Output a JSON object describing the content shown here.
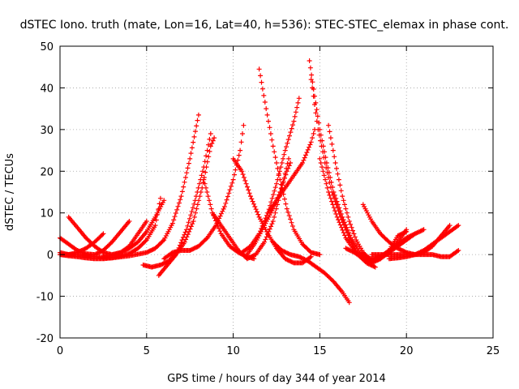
{
  "chart_data": {
    "type": "scatter",
    "title": "dSTEC Iono. truth (mate, Lon=16, Lat=40, h=536): STEC-STEC_elemax in phase cont.",
    "xlabel": "GPS time / hours of day 344 of year 2014",
    "ylabel": "dSTEC  / TECUs",
    "xlim": [
      0,
      25
    ],
    "ylim": [
      -20,
      50
    ],
    "xticks": [
      0,
      5,
      10,
      15,
      20,
      25
    ],
    "yticks": [
      -20,
      -10,
      0,
      10,
      20,
      30,
      40,
      50
    ],
    "xtick_labels": [
      "0",
      "5",
      "10",
      "15",
      "20",
      "25"
    ],
    "ytick_labels": [
      "-20",
      "-10",
      "0",
      "10",
      "20",
      "30",
      "40",
      "50"
    ],
    "grid": true,
    "marker": "+",
    "color": "#ff0000",
    "series": [
      {
        "points": [
          [
            0.0,
            4.0
          ],
          [
            0.5,
            2.5
          ],
          [
            1.0,
            1.0
          ],
          [
            1.5,
            0.2
          ],
          [
            2.0,
            0.0
          ],
          [
            2.5,
            1.0
          ],
          [
            3.0,
            3.0
          ],
          [
            3.5,
            5.5
          ],
          [
            4.0,
            8.0
          ]
        ]
      },
      {
        "points": [
          [
            0.0,
            0.5
          ],
          [
            0.5,
            0.0
          ],
          [
            1.0,
            0.5
          ],
          [
            1.5,
            1.5
          ],
          [
            2.0,
            3.0
          ],
          [
            2.5,
            5.0
          ]
        ]
      },
      {
        "points": [
          [
            0.5,
            9.0
          ],
          [
            1.0,
            6.5
          ],
          [
            1.5,
            4.0
          ],
          [
            2.0,
            2.0
          ],
          [
            2.5,
            0.5
          ],
          [
            3.0,
            0.0
          ],
          [
            3.5,
            0.5
          ],
          [
            4.0,
            2.0
          ],
          [
            4.5,
            5.0
          ],
          [
            5.0,
            8.0
          ]
        ]
      },
      {
        "points": [
          [
            0.0,
            0.0
          ],
          [
            0.5,
            -0.3
          ],
          [
            1.0,
            -0.5
          ],
          [
            1.5,
            -0.8
          ],
          [
            2.0,
            -1.0
          ],
          [
            2.5,
            -1.0
          ],
          [
            3.0,
            -0.8
          ],
          [
            3.5,
            -0.3
          ],
          [
            4.0,
            0.2
          ],
          [
            4.5,
            1.5
          ],
          [
            5.0,
            3.5
          ],
          [
            5.5,
            7.0
          ],
          [
            5.8,
            13.5
          ]
        ]
      },
      {
        "points": [
          [
            2.5,
            -0.5
          ],
          [
            3.0,
            -0.2
          ],
          [
            3.5,
            0.5
          ],
          [
            4.0,
            1.5
          ],
          [
            4.5,
            3.0
          ],
          [
            5.0,
            5.5
          ],
          [
            5.5,
            9.0
          ],
          [
            6.0,
            13.0
          ]
        ]
      },
      {
        "points": [
          [
            0.0,
            0.0
          ],
          [
            1.0,
            0.0
          ],
          [
            2.0,
            -0.5
          ],
          [
            3.0,
            -0.8
          ],
          [
            4.0,
            -0.3
          ],
          [
            5.0,
            0.5
          ],
          [
            5.5,
            1.5
          ],
          [
            6.0,
            3.5
          ],
          [
            6.5,
            7.5
          ],
          [
            7.0,
            14.0
          ],
          [
            7.5,
            23.0
          ],
          [
            8.0,
            33.5
          ]
        ]
      },
      {
        "points": [
          [
            4.8,
            -2.5
          ],
          [
            5.3,
            -3.0
          ],
          [
            5.8,
            -2.5
          ],
          [
            6.3,
            -1.5
          ],
          [
            6.8,
            1.0
          ],
          [
            7.3,
            6.0
          ],
          [
            7.8,
            13.0
          ],
          [
            8.3,
            21.0
          ],
          [
            8.7,
            29.0
          ]
        ]
      },
      {
        "points": [
          [
            5.7,
            -5.0
          ],
          [
            6.2,
            -2.5
          ],
          [
            6.7,
            0.0
          ],
          [
            7.2,
            3.0
          ],
          [
            7.7,
            8.0
          ],
          [
            8.2,
            16.0
          ],
          [
            8.7,
            26.0
          ],
          [
            8.9,
            28.0
          ]
        ]
      },
      {
        "points": [
          [
            6.0,
            -1.0
          ],
          [
            6.5,
            0.5
          ],
          [
            7.0,
            1.0
          ],
          [
            7.5,
            1.0
          ],
          [
            8.0,
            2.0
          ],
          [
            8.5,
            4.0
          ],
          [
            9.0,
            7.0
          ],
          [
            9.5,
            11.5
          ],
          [
            10.0,
            18.0
          ],
          [
            10.4,
            25.0
          ],
          [
            10.6,
            31.0
          ]
        ]
      },
      {
        "points": [
          [
            8.3,
            18.0
          ],
          [
            8.8,
            10.0
          ],
          [
            9.3,
            5.0
          ],
          [
            9.8,
            2.0
          ],
          [
            10.3,
            0.5
          ],
          [
            10.8,
            -0.5
          ],
          [
            11.2,
            -1.0
          ]
        ]
      },
      {
        "points": [
          [
            8.8,
            10.0
          ],
          [
            9.3,
            7.0
          ],
          [
            9.8,
            4.0
          ],
          [
            10.3,
            1.0
          ],
          [
            10.8,
            -1.0
          ],
          [
            11.3,
            0.0
          ],
          [
            11.8,
            3.0
          ],
          [
            12.3,
            8.0
          ],
          [
            12.8,
            16.0
          ],
          [
            13.2,
            23.0
          ]
        ]
      },
      {
        "points": [
          [
            10.0,
            23.0
          ],
          [
            10.5,
            20.0
          ],
          [
            11.0,
            14.0
          ],
          [
            11.5,
            9.0
          ],
          [
            12.0,
            5.0
          ],
          [
            12.5,
            1.5
          ],
          [
            13.0,
            -1.0
          ],
          [
            13.5,
            -2.0
          ],
          [
            14.0,
            -2.0
          ],
          [
            14.5,
            -0.5
          ]
        ]
      },
      {
        "points": [
          [
            10.5,
            0.5
          ],
          [
            11.0,
            2.0
          ],
          [
            11.5,
            5.0
          ],
          [
            12.0,
            10.0
          ],
          [
            12.5,
            17.0
          ],
          [
            13.0,
            25.0
          ],
          [
            13.5,
            32.0
          ],
          [
            13.8,
            37.5
          ]
        ]
      },
      {
        "points": [
          [
            11.5,
            44.5
          ],
          [
            11.9,
            35.0
          ],
          [
            12.3,
            26.0
          ],
          [
            12.7,
            18.0
          ],
          [
            13.1,
            11.0
          ],
          [
            13.5,
            6.0
          ],
          [
            14.0,
            2.5
          ],
          [
            14.5,
            0.5
          ],
          [
            15.0,
            0.0
          ]
        ]
      },
      {
        "points": [
          [
            10.8,
            0.0
          ],
          [
            11.3,
            3.0
          ],
          [
            11.8,
            7.0
          ],
          [
            12.3,
            11.0
          ],
          [
            12.7,
            15.0
          ],
          [
            13.1,
            20.0
          ],
          [
            13.3,
            22.0
          ]
        ]
      },
      {
        "points": [
          [
            12.0,
            10.0
          ],
          [
            12.5,
            13.0
          ],
          [
            13.0,
            16.0
          ],
          [
            13.5,
            19.0
          ],
          [
            14.0,
            22.0
          ],
          [
            14.5,
            27.0
          ],
          [
            14.7,
            30.0
          ]
        ]
      },
      {
        "points": [
          [
            12.3,
            3.0
          ],
          [
            12.8,
            1.0
          ],
          [
            13.3,
            0.0
          ],
          [
            13.8,
            -0.5
          ],
          [
            14.3,
            -1.5
          ],
          [
            14.8,
            -3.0
          ],
          [
            15.3,
            -4.5
          ],
          [
            15.8,
            -6.5
          ],
          [
            16.3,
            -9.0
          ],
          [
            16.7,
            -11.5
          ]
        ]
      },
      {
        "points": [
          [
            14.4,
            46.5
          ],
          [
            14.7,
            38.0
          ],
          [
            15.0,
            30.0
          ],
          [
            15.4,
            22.0
          ],
          [
            15.8,
            15.0
          ],
          [
            16.3,
            9.0
          ],
          [
            16.8,
            4.0
          ],
          [
            17.3,
            0.5
          ],
          [
            17.8,
            -1.0
          ]
        ]
      },
      {
        "points": [
          [
            14.5,
            42.0
          ],
          [
            14.9,
            30.0
          ],
          [
            15.3,
            22.0
          ],
          [
            15.7,
            15.0
          ],
          [
            16.2,
            9.0
          ],
          [
            16.7,
            4.0
          ],
          [
            17.2,
            0.0
          ],
          [
            17.7,
            -2.0
          ],
          [
            18.2,
            -3.0
          ]
        ]
      },
      {
        "points": [
          [
            15.0,
            23.0
          ],
          [
            15.5,
            15.0
          ],
          [
            16.0,
            9.0
          ],
          [
            16.5,
            4.0
          ],
          [
            17.0,
            1.0
          ],
          [
            17.5,
            -1.0
          ],
          [
            18.0,
            -2.0
          ],
          [
            18.5,
            -1.0
          ],
          [
            19.0,
            1.0
          ],
          [
            19.5,
            4.5
          ],
          [
            20.0,
            5.5
          ]
        ]
      },
      {
        "points": [
          [
            15.5,
            31.0
          ],
          [
            15.9,
            22.0
          ],
          [
            16.3,
            14.0
          ],
          [
            16.7,
            8.0
          ],
          [
            17.1,
            3.5
          ],
          [
            17.5,
            0.5
          ],
          [
            18.0,
            -1.5
          ],
          [
            18.5,
            -1.0
          ],
          [
            19.0,
            0.5
          ],
          [
            19.5,
            3.0
          ],
          [
            20.0,
            6.0
          ]
        ]
      },
      {
        "points": [
          [
            17.5,
            12.0
          ],
          [
            18.0,
            8.0
          ],
          [
            18.5,
            5.0
          ],
          [
            19.0,
            3.0
          ],
          [
            19.5,
            1.5
          ],
          [
            20.0,
            0.5
          ],
          [
            20.5,
            0.0
          ],
          [
            21.0,
            0.5
          ],
          [
            21.5,
            2.0
          ],
          [
            22.0,
            4.5
          ],
          [
            22.5,
            7.0
          ]
        ]
      },
      {
        "points": [
          [
            16.5,
            1.5
          ],
          [
            17.0,
            0.5
          ],
          [
            17.5,
            -0.5
          ],
          [
            18.0,
            -1.0
          ],
          [
            18.5,
            -0.5
          ],
          [
            19.0,
            0.5
          ],
          [
            19.5,
            2.0
          ],
          [
            20.0,
            3.5
          ],
          [
            20.5,
            5.0
          ],
          [
            21.0,
            6.0
          ]
        ]
      },
      {
        "points": [
          [
            17.0,
            0.5
          ],
          [
            17.5,
            -1.0
          ],
          [
            18.0,
            -1.5
          ],
          [
            18.5,
            -0.5
          ],
          [
            19.0,
            1.0
          ],
          [
            19.5,
            2.5
          ],
          [
            20.0,
            4.0
          ],
          [
            20.5,
            5.0
          ]
        ]
      },
      {
        "points": [
          [
            18.0,
            0.0
          ],
          [
            18.5,
            0.0
          ],
          [
            19.0,
            0.0
          ],
          [
            19.5,
            0.0
          ],
          [
            20.0,
            0.0
          ],
          [
            20.5,
            0.0
          ],
          [
            21.0,
            0.0
          ],
          [
            21.5,
            0.0
          ],
          [
            22.0,
            -0.5
          ],
          [
            22.5,
            -0.5
          ],
          [
            23.0,
            1.0
          ]
        ]
      },
      {
        "points": [
          [
            19.0,
            -1.0
          ],
          [
            19.5,
            -0.8
          ],
          [
            20.0,
            -0.5
          ],
          [
            20.5,
            0.0
          ],
          [
            21.0,
            1.0
          ],
          [
            21.5,
            2.5
          ],
          [
            22.0,
            4.0
          ],
          [
            22.5,
            5.5
          ],
          [
            23.0,
            7.0
          ]
        ]
      }
    ]
  }
}
